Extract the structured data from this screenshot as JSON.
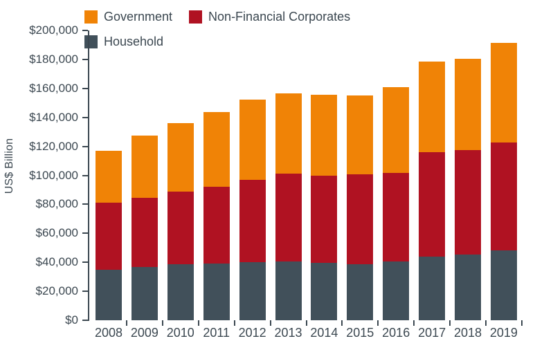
{
  "chart_data": {
    "type": "bar",
    "stacked": true,
    "stack_order": "bottom-to-top",
    "title": "",
    "xlabel": "",
    "ylabel": "US$ Billion",
    "ylim": [
      0,
      200000
    ],
    "ytick_step": 20000,
    "ytick_labels": [
      "$0",
      "$20,000",
      "$40,000",
      "$60,000",
      "$80,000",
      "$100,000",
      "$120,000",
      "$140,000",
      "$160,000",
      "$180,000",
      "$200,000"
    ],
    "grid": false,
    "legend_position": "top",
    "categories": [
      "2008",
      "2009",
      "2010",
      "2011",
      "2012",
      "2013",
      "2014",
      "2015",
      "2016",
      "2017",
      "2018",
      "2019"
    ],
    "series": [
      {
        "name": "Household",
        "color": "#41505A",
        "values": [
          35000,
          37000,
          38500,
          39000,
          40000,
          40500,
          39500,
          38500,
          40500,
          44000,
          45500,
          48000
        ]
      },
      {
        "name": "Non-Financial Corporates",
        "color": "#B01222",
        "values": [
          46000,
          47500,
          50500,
          53000,
          57000,
          60500,
          60500,
          62000,
          61000,
          72000,
          72000,
          74500
        ]
      },
      {
        "name": "Government",
        "color": "#F08306",
        "values": [
          36000,
          43000,
          47000,
          51500,
          55500,
          55500,
          55500,
          54500,
          59500,
          62500,
          63000,
          69000
        ]
      }
    ]
  },
  "legend": {
    "items": [
      {
        "label": "Government",
        "color": "#F08306"
      },
      {
        "label": "Non-Financial Corporates",
        "color": "#B01222"
      },
      {
        "label": "Household",
        "color": "#41505A"
      }
    ]
  },
  "colors": {
    "axis": "#3B4750",
    "text": "#3B4750",
    "background": "#ffffff"
  }
}
